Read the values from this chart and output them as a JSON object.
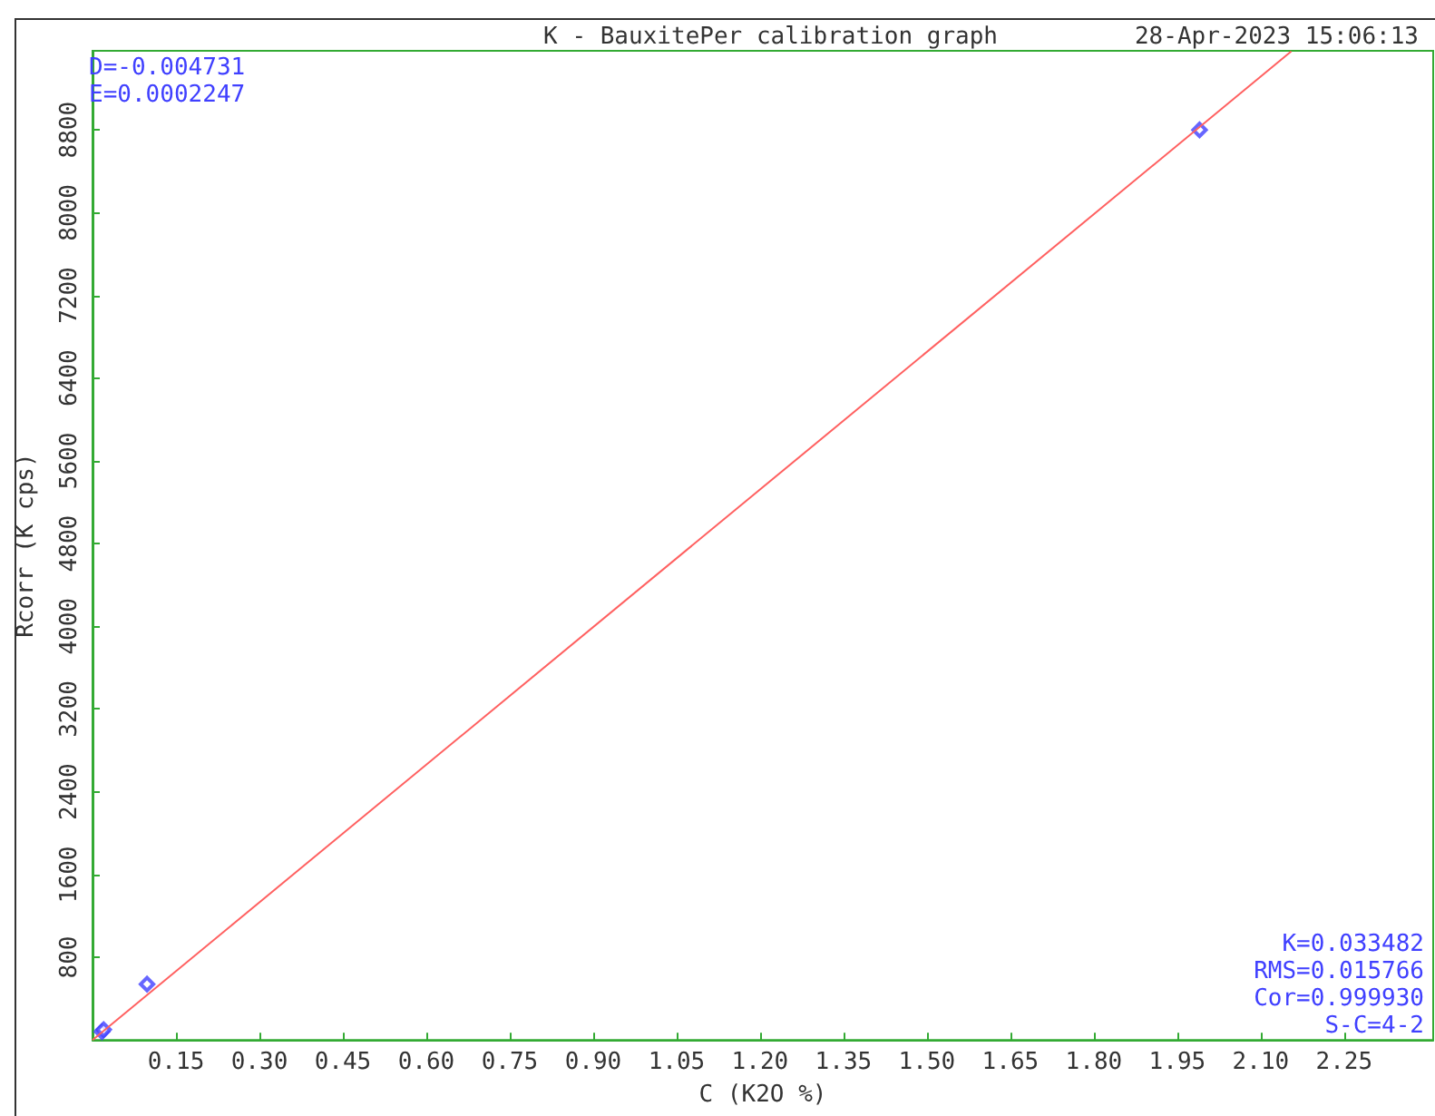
{
  "chart_data": {
    "type": "scatter",
    "title": "K - BauxitePer calibration graph",
    "subtitle": "28-Apr-2023 15:06:13",
    "xlabel": "C (K2O %)",
    "ylabel": "Rcorr (K cps)",
    "annotations": [
      "D=-0.004731",
      "E=0.0002247",
      "K=0.033482",
      "RMS=0.015766",
      "Cor=0.999930",
      "S-C=4-2"
    ],
    "series": [
      {
        "color": "#4040ff",
        "marker": "diamond",
        "x": [
          0.017,
          0.02,
          0.098,
          1.99
        ],
        "values": [
          80,
          100,
          540,
          8800
        ]
      },
      {
        "type": "line",
        "color": "#ff6060",
        "marker": "none",
        "line_style": "solid",
        "x": [
          0,
          2.155
        ],
        "values": [
          0,
          9560
        ]
      }
    ],
    "xlim": [
      0,
      2.41
    ],
    "xticks": [
      0.15,
      {
        "value": 0.3,
        "label": "0.30"
      },
      0.45,
      {
        "value": 0.6,
        "label": "0.60"
      },
      0.75,
      {
        "value": 0.9,
        "label": "0.90"
      },
      1.05,
      {
        "value": 1.2,
        "label": "1.20"
      },
      1.35,
      {
        "value": 1.5,
        "label": "1.50"
      },
      1.65,
      {
        "value": 1.8,
        "label": "1.80"
      },
      1.95,
      {
        "value": 2.1,
        "label": "2.10"
      },
      2.25
    ],
    "ylim": [
      0,
      9565
    ],
    "yticks": [
      800,
      1600,
      2400,
      3200,
      4000,
      4800,
      5600,
      6400,
      7200,
      8000,
      8800
    ],
    "grid": false
  }
}
